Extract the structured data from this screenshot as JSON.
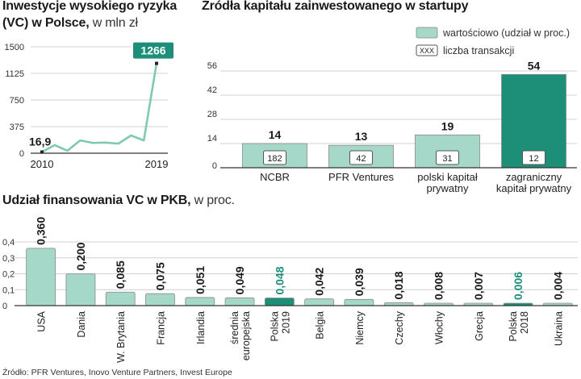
{
  "chart_data": [
    {
      "type": "line",
      "title": "Inwestycje wysokiego ryzyka",
      "title2": "(VC) w Polsce,",
      "subtitle": "w mln zł",
      "x": [
        2010,
        2011,
        2012,
        2013,
        2014,
        2015,
        2016,
        2017,
        2018,
        2019
      ],
      "values": [
        16.9,
        115,
        35,
        180,
        145,
        150,
        135,
        250,
        180,
        1266
      ],
      "yticks": [
        "0",
        "375",
        "750",
        "1125",
        "1500"
      ],
      "ylim": [
        0,
        1500
      ],
      "xtick_labels": [
        "2010",
        "2019"
      ],
      "start_label": "16,9",
      "end_label": "1266",
      "colors": {
        "line": "#7fc9b3",
        "dark": "#1d8f78",
        "grid": "#d0d0d0",
        "axis": "#333333"
      }
    },
    {
      "type": "bar",
      "title": "Źródła kapitału zainwestowanego w startupy",
      "legend": {
        "value_label": "wartościowo (udział w proc.)",
        "count_box": "XXX",
        "count_label": "liczba transakcji"
      },
      "categories": [
        "NCBR",
        "PFR Ventures",
        "polski kapitał prywatny",
        "zagraniczny kapitał prywatny"
      ],
      "category_lines": [
        [
          "NCBR"
        ],
        [
          "PFR Ventures"
        ],
        [
          "polski kapitał",
          "prywatny"
        ],
        [
          "zagraniczny",
          "kapitał prywatny"
        ]
      ],
      "values": [
        14,
        13,
        19,
        54
      ],
      "value_labels": [
        "14",
        "13",
        "19",
        "54"
      ],
      "transactions": [
        182,
        42,
        31,
        12
      ],
      "transaction_labels": [
        "182",
        "42",
        "31",
        "12"
      ],
      "highlight_index": 3,
      "yticks": [
        "0",
        "14",
        "28",
        "42",
        "56"
      ],
      "ylim": [
        0,
        56
      ],
      "colors": {
        "bar": "#a5d8c8",
        "highlight": "#1d8f78",
        "grid": "#d0d0d0"
      }
    },
    {
      "type": "bar",
      "title": "Udział finansowania VC w PKB,",
      "subtitle": "w proc.",
      "categories": [
        "USA",
        "Dania",
        "W. Brytania",
        "Francja",
        "Irlandia",
        "średnia europejska",
        "Polska 2019",
        "Belgia",
        "Niemcy",
        "Czechy",
        "Włochy",
        "Grecja",
        "Polska 2018",
        "Ukraina"
      ],
      "category_lines": [
        [
          "USA"
        ],
        [
          "Dania"
        ],
        [
          "W. Brytania"
        ],
        [
          "Francja"
        ],
        [
          "Irlandia"
        ],
        [
          "średnia",
          "europejska"
        ],
        [
          "Polska",
          "2019"
        ],
        [
          "Belgia"
        ],
        [
          "Niemcy"
        ],
        [
          "Czechy"
        ],
        [
          "Włochy"
        ],
        [
          "Grecja"
        ],
        [
          "Polska",
          "2018"
        ],
        [
          "Ukraina"
        ]
      ],
      "values": [
        0.36,
        0.2,
        0.085,
        0.075,
        0.051,
        0.049,
        0.048,
        0.042,
        0.039,
        0.018,
        0.008,
        0.007,
        0.006,
        0.004
      ],
      "value_labels": [
        "0,360",
        "0,200",
        "0,085",
        "0,075",
        "0,051",
        "0,049",
        "0,048",
        "0,042",
        "0,039",
        "0,018",
        "0,008",
        "0,007",
        "0,006",
        "0,004"
      ],
      "highlight_index": [
        6,
        12
      ],
      "yticks": [
        "0",
        "0,1",
        "0,2",
        "0,3",
        "0,4"
      ],
      "ylim": [
        0,
        0.4
      ],
      "colors": {
        "bar": "#a5d8c8",
        "highlight": "#1d8f78",
        "grid": "#d0d0d0"
      }
    }
  ],
  "source": "Źródło: PFR Ventures, Inovo Venture Partners, Invest Europe"
}
